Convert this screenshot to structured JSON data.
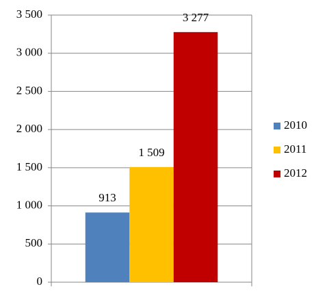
{
  "chart_data": {
    "type": "bar",
    "categories": [
      null
    ],
    "series": [
      {
        "name": "2010",
        "color": "#4f81bd",
        "values": [
          913
        ],
        "value_labels": [
          "913"
        ]
      },
      {
        "name": "2011",
        "color": "#ffc000",
        "values": [
          1509
        ],
        "value_labels": [
          "1 509"
        ]
      },
      {
        "name": "2012",
        "color": "#c00000",
        "values": [
          3277
        ],
        "value_labels": [
          "3 277"
        ]
      }
    ],
    "ylim": [
      0,
      3500
    ],
    "yticks": [
      0,
      500,
      {
        "value": 1000,
        "label": "1 000"
      },
      {
        "value": 1500,
        "label": "1 500"
      },
      {
        "value": 2000,
        "label": "2 000"
      },
      {
        "value": 2500,
        "label": "2 500"
      },
      {
        "value": 3000,
        "label": "3 000"
      },
      {
        "value": 3500,
        "label": "3 500"
      }
    ],
    "grid": true,
    "legend": "right"
  }
}
